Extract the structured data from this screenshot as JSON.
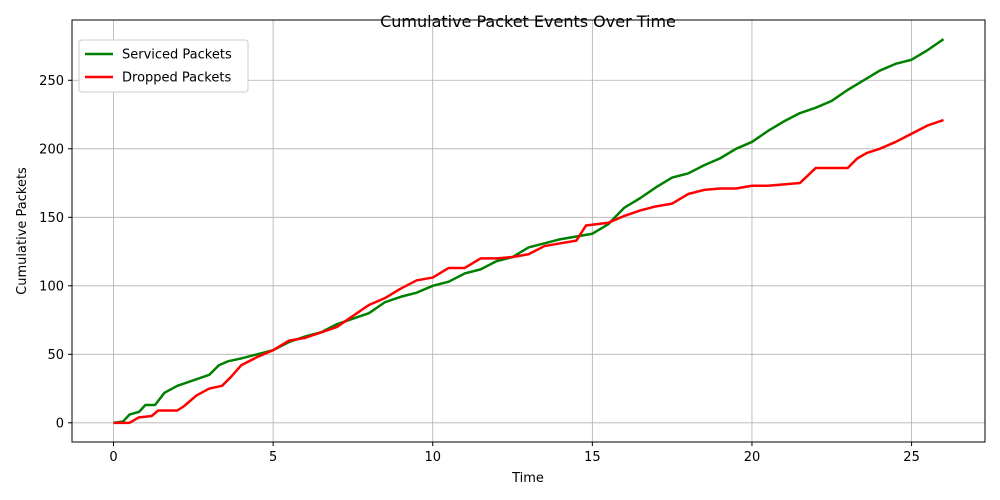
{
  "chart_data": {
    "type": "line",
    "title": "Cumulative Packet Events Over Time",
    "xlabel": "Time",
    "ylabel": "Cumulative Packets",
    "xlim": [
      -1.3,
      27.3
    ],
    "ylim": [
      -14,
      294
    ],
    "xticks": [
      0,
      5,
      10,
      15,
      20,
      25
    ],
    "yticks": [
      0,
      50,
      100,
      150,
      200,
      250
    ],
    "grid": true,
    "legend_position": "top-left",
    "series": [
      {
        "name": "Serviced Packets",
        "color": "#008000",
        "x": [
          0,
          0.3,
          0.5,
          0.8,
          1.0,
          1.3,
          1.6,
          2.0,
          2.5,
          3.0,
          3.3,
          3.6,
          4.0,
          4.5,
          5.0,
          5.5,
          6.0,
          6.5,
          7.0,
          7.5,
          8.0,
          8.5,
          9.0,
          9.5,
          10.0,
          10.5,
          11.0,
          11.5,
          12.0,
          12.5,
          13.0,
          13.5,
          14.0,
          14.5,
          15.0,
          15.5,
          16.0,
          16.5,
          17.0,
          17.5,
          18.0,
          18.5,
          19.0,
          19.5,
          20.0,
          20.5,
          21.0,
          21.5,
          22.0,
          22.5,
          23.0,
          23.5,
          24.0,
          24.5,
          25.0,
          25.5,
          26.0
        ],
        "y": [
          0,
          1,
          6,
          8,
          13,
          13,
          22,
          27,
          31,
          35,
          42,
          45,
          47,
          50,
          53,
          59,
          63,
          66,
          72,
          76,
          80,
          88,
          92,
          95,
          100,
          103,
          109,
          112,
          118,
          121,
          128,
          131,
          134,
          136,
          138,
          145,
          157,
          164,
          172,
          179,
          182,
          188,
          193,
          200,
          205,
          213,
          220,
          226,
          230,
          235,
          243,
          250,
          257,
          262,
          265,
          272,
          280
        ]
      },
      {
        "name": "Dropped Packets",
        "color": "#ff0000",
        "x": [
          0,
          0.5,
          0.8,
          1.2,
          1.4,
          2.0,
          2.2,
          2.6,
          3.0,
          3.4,
          3.7,
          4.0,
          4.5,
          5.0,
          5.5,
          6.0,
          6.5,
          7.0,
          7.5,
          8.0,
          8.5,
          9.0,
          9.5,
          10.0,
          10.5,
          11.0,
          11.5,
          12.0,
          12.5,
          13.0,
          13.5,
          14.0,
          14.5,
          14.8,
          15.5,
          16.0,
          16.5,
          17.0,
          17.5,
          18.0,
          18.5,
          19.0,
          19.5,
          20.0,
          20.5,
          21.0,
          21.5,
          22.0,
          22.5,
          23.0,
          23.3,
          23.6,
          24.0,
          24.5,
          25.0,
          25.5,
          26.0
        ],
        "y": [
          0,
          0,
          4,
          5,
          9,
          9,
          12,
          20,
          25,
          27,
          34,
          42,
          48,
          53,
          60,
          62,
          66,
          70,
          78,
          86,
          91,
          98,
          104,
          106,
          113,
          113,
          120,
          120,
          121,
          123,
          129,
          131,
          133,
          144,
          146,
          151,
          155,
          158,
          160,
          167,
          170,
          171,
          171,
          173,
          173,
          174,
          175,
          186,
          186,
          186,
          193,
          197,
          200,
          205,
          211,
          217,
          221
        ]
      }
    ]
  }
}
